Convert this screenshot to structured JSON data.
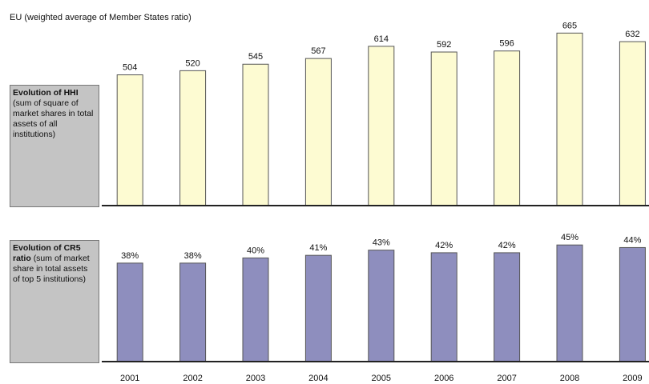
{
  "chart_data": {
    "type": "bar",
    "title": "EU (weighted average of Member States ratio)",
    "categories": [
      "2001",
      "2002",
      "2003",
      "2004",
      "2005",
      "2006",
      "2007",
      "2008",
      "2009"
    ],
    "panels": [
      {
        "name_bold": "Evolution of HHI",
        "name_rest": "(sum of square of market shares in total assets of all institutions)",
        "values": [
          504,
          520,
          545,
          567,
          614,
          592,
          596,
          665,
          632
        ],
        "color": "#fdfbd2",
        "ylim": [
          0,
          700
        ]
      },
      {
        "name_bold": "Evolution of CR5 ratio",
        "name_rest": "(sum of market share in total assets of top 5 institutions)",
        "values": [
          38,
          38,
          40,
          41,
          43,
          42,
          42,
          45,
          44
        ],
        "value_labels": [
          "38%",
          "38%",
          "40%",
          "41%",
          "43%",
          "42%",
          "42%",
          "45%",
          "44%"
        ],
        "color": "#8e8ebe",
        "ylim": [
          0,
          50
        ]
      }
    ]
  }
}
